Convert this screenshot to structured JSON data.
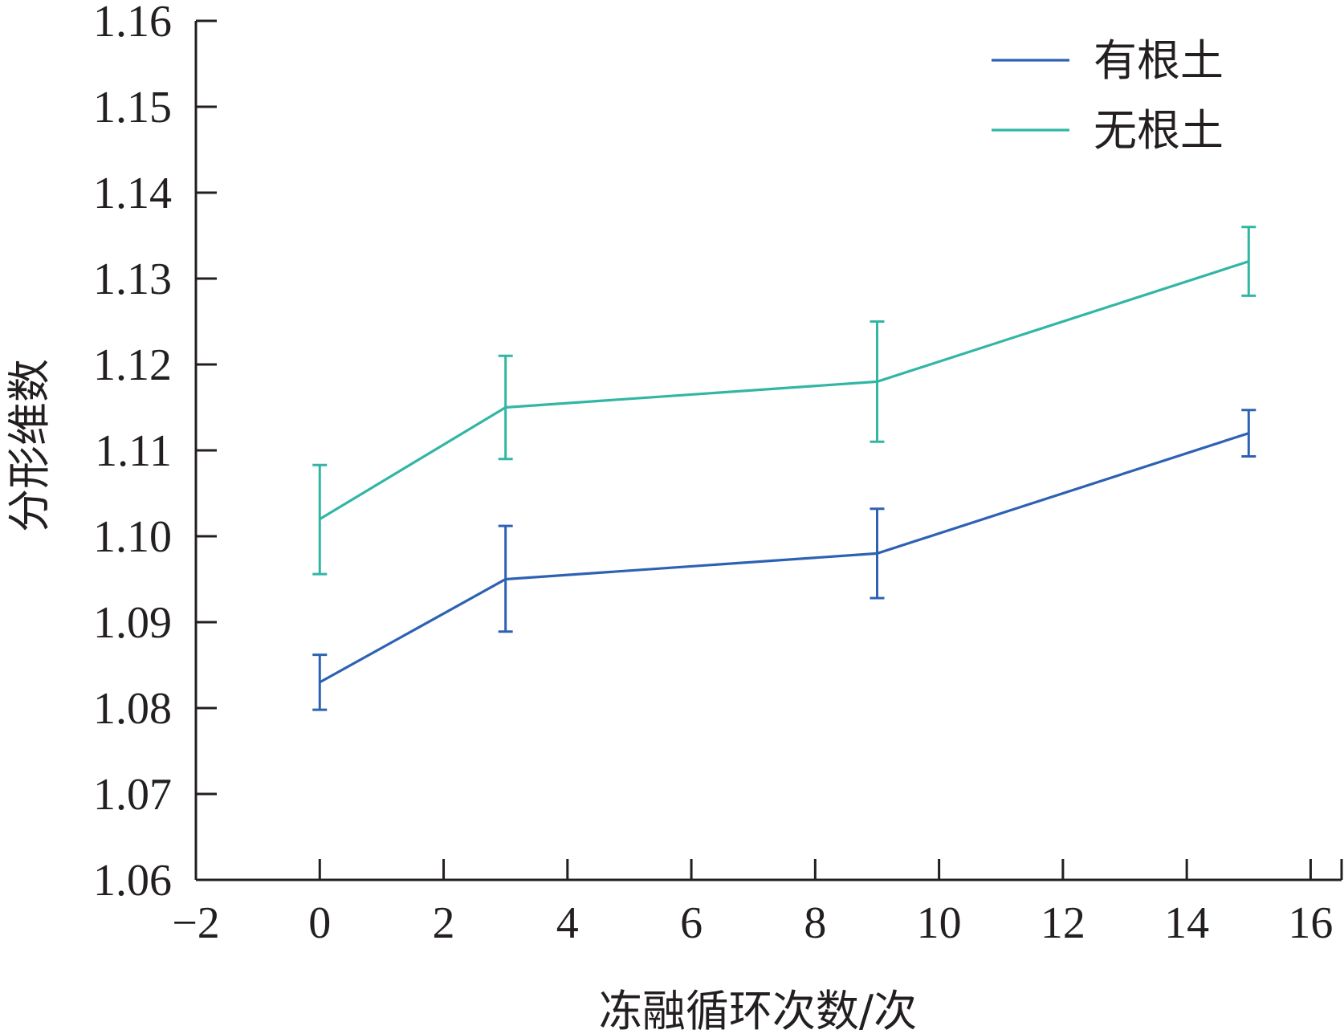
{
  "chart_data": {
    "type": "line",
    "title": "",
    "xlabel": "冻融循环次数/次",
    "ylabel": "分形维数",
    "xlim": [
      -2,
      16.5
    ],
    "ylim": [
      1.06,
      1.16
    ],
    "x_ticks": [
      -2,
      0,
      2,
      4,
      6,
      8,
      10,
      12,
      14,
      16
    ],
    "x_tick_labels": [
      "−2",
      "0",
      "2",
      "4",
      "6",
      "8",
      "10",
      "12",
      "14",
      "16"
    ],
    "y_ticks": [
      1.06,
      1.07,
      1.08,
      1.09,
      1.1,
      1.11,
      1.12,
      1.13,
      1.14,
      1.15,
      1.16
    ],
    "y_tick_labels": [
      "1.06",
      "1.07",
      "1.08",
      "1.09",
      "1.10",
      "1.11",
      "1.12",
      "1.13",
      "1.14",
      "1.15",
      "1.16"
    ],
    "grid": false,
    "legend_position": "top-right",
    "series": [
      {
        "name": "有根土",
        "color": "#2d62b3",
        "x": [
          0,
          3,
          9,
          15
        ],
        "y": [
          1.083,
          1.095,
          1.098,
          1.112
        ],
        "err_low": [
          1.0798,
          1.0889,
          1.0928,
          1.1093
        ],
        "err_high": [
          1.0862,
          1.1012,
          1.1032,
          1.1147
        ]
      },
      {
        "name": "无根土",
        "color": "#32b6a4",
        "x": [
          0,
          3,
          9,
          15
        ],
        "y": [
          1.102,
          1.115,
          1.118,
          1.132
        ],
        "err_low": [
          1.0956,
          1.109,
          1.111,
          1.128
        ],
        "err_high": [
          1.1083,
          1.121,
          1.125,
          1.136
        ]
      }
    ]
  }
}
